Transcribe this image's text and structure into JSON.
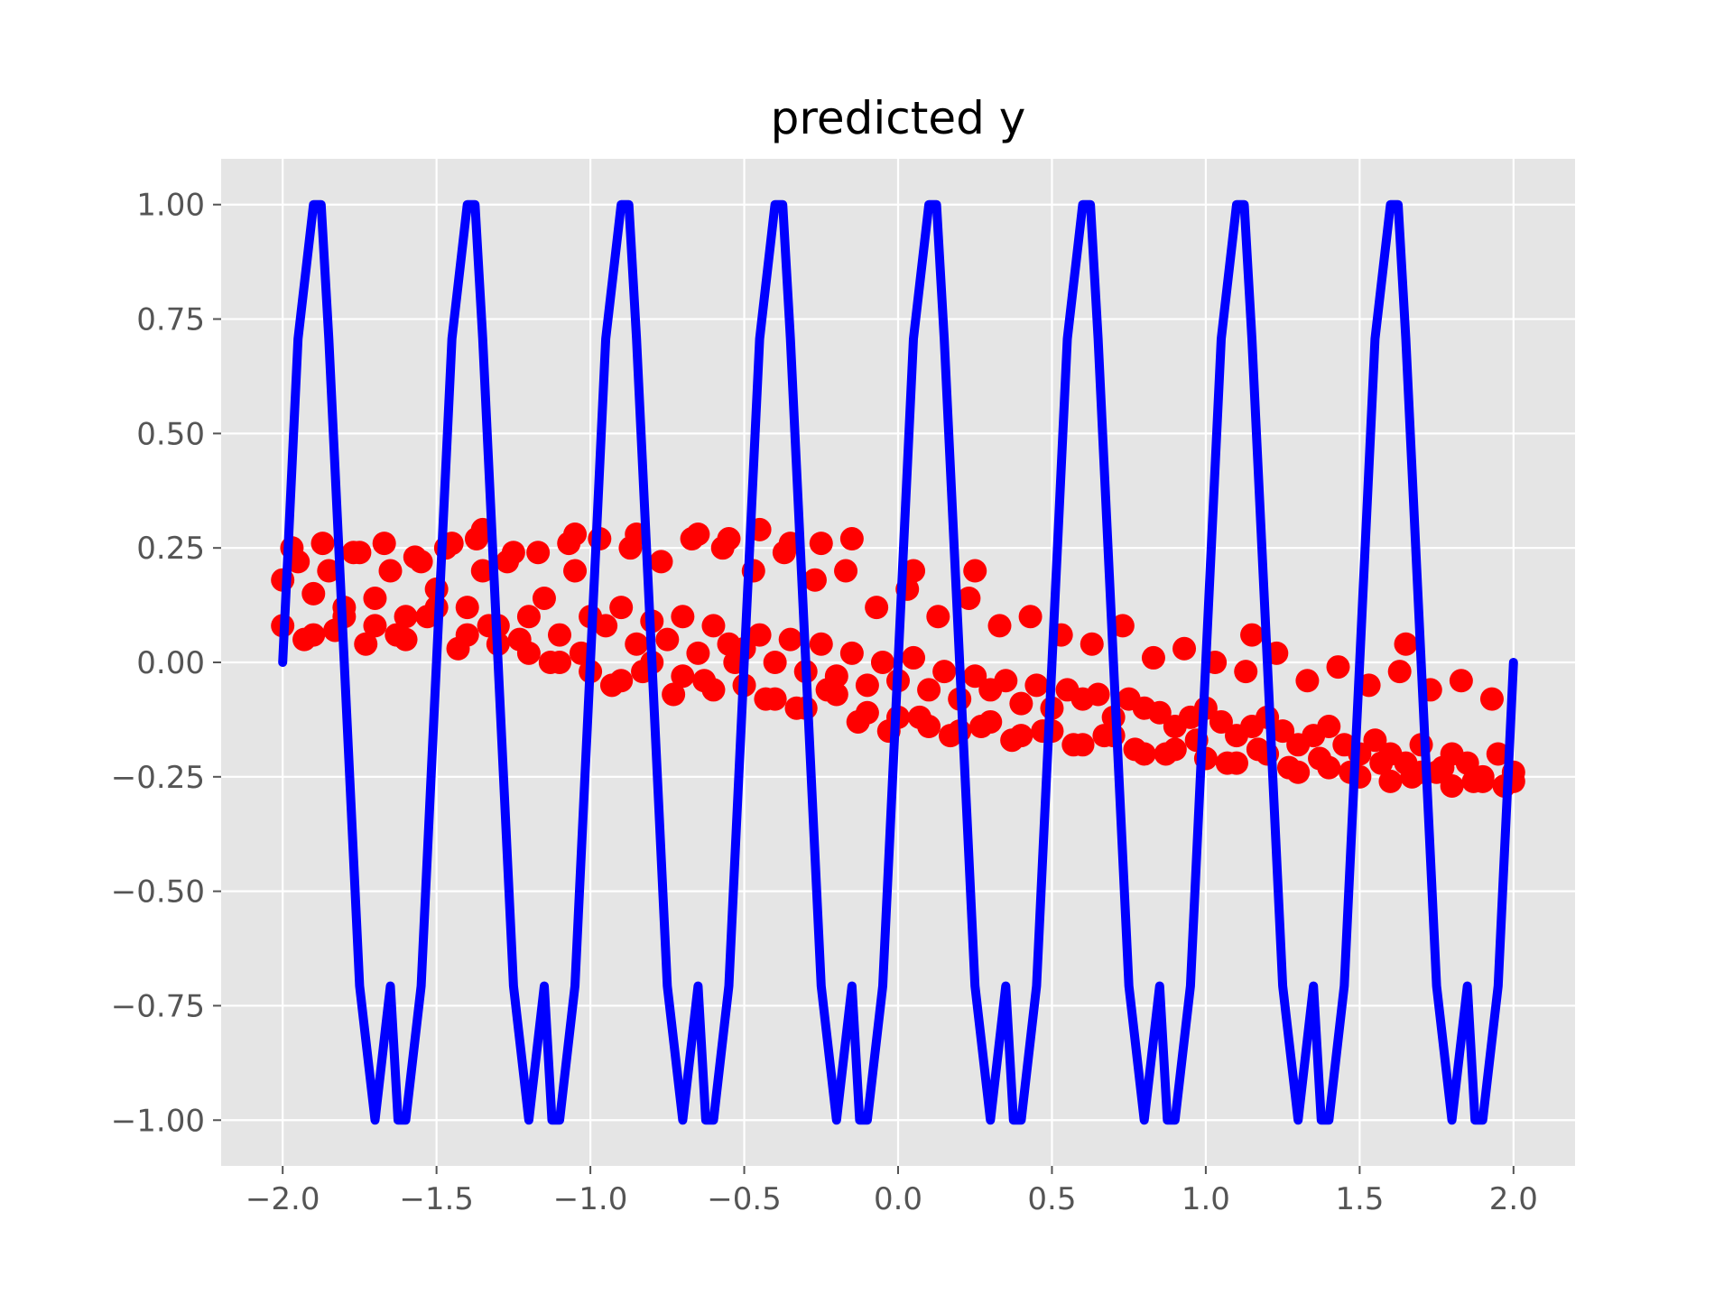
{
  "chart_data": {
    "type": "scatter",
    "title": "predicted y",
    "xlabel": "",
    "ylabel": "",
    "xlim": [
      -2.2,
      2.2
    ],
    "ylim": [
      -1.1,
      1.1
    ],
    "xticks": [
      -2.0,
      -1.5,
      -1.0,
      -0.5,
      0.0,
      0.5,
      1.0,
      1.5,
      2.0
    ],
    "xtick_labels": [
      "−2.0",
      "−1.5",
      "−1.0",
      "−0.5",
      "0.0",
      "0.5",
      "1.0",
      "1.5",
      "2.0"
    ],
    "yticks": [
      1.0,
      0.75,
      0.5,
      0.25,
      0.0,
      -0.25,
      -0.5,
      -0.75,
      -1.0
    ],
    "ytick_labels": [
      "1.00",
      "0.75",
      "0.50",
      "0.25",
      "0.00",
      "−0.25",
      "−0.50",
      "−0.75",
      "−1.00"
    ],
    "grid": true,
    "style": "ggplot",
    "colors": {
      "background": "#e5e5e5",
      "grid": "#ffffff",
      "line": "#0000ff",
      "points": "#ff0000"
    },
    "series": [
      {
        "type": "line",
        "color": "#0000ff",
        "x": [
          -2.0,
          -1.95,
          -1.9,
          -1.875,
          -1.85,
          -1.8,
          -1.75,
          -1.7,
          -1.65,
          -1.625,
          -1.6,
          -1.55,
          -1.5,
          -1.45,
          -1.4,
          -1.375,
          -1.35,
          -1.3,
          -1.25,
          -1.2,
          -1.15,
          -1.125,
          -1.1,
          -1.05,
          -1.0,
          -0.95,
          -0.9,
          -0.875,
          -0.85,
          -0.8,
          -0.75,
          -0.7,
          -0.65,
          -0.625,
          -0.6,
          -0.55,
          -0.5,
          -0.45,
          -0.4,
          -0.375,
          -0.35,
          -0.3,
          -0.25,
          -0.2,
          -0.15,
          -0.125,
          -0.1,
          -0.05,
          0.0,
          0.05,
          0.1,
          0.125,
          0.15,
          0.2,
          0.25,
          0.3,
          0.35,
          0.375,
          0.4,
          0.45,
          0.5,
          0.55,
          0.6,
          0.625,
          0.65,
          0.7,
          0.75,
          0.8,
          0.85,
          0.875,
          0.9,
          0.95,
          1.0,
          1.05,
          1.1,
          1.125,
          1.15,
          1.2,
          1.25,
          1.3,
          1.35,
          1.375,
          1.4,
          1.45,
          1.5,
          1.55,
          1.6,
          1.625,
          1.65,
          1.7,
          1.75,
          1.8,
          1.85,
          1.875,
          1.9,
          1.95,
          2.0
        ],
        "y": [
          0.0,
          0.707,
          1.0,
          1.0,
          0.707,
          0.0,
          -0.707,
          -1.0,
          -0.707,
          -1.0,
          -1.0,
          -0.707,
          0.0,
          0.707,
          1.0,
          1.0,
          0.707,
          0.0,
          -0.707,
          -1.0,
          -0.707,
          -1.0,
          -1.0,
          -0.707,
          0.0,
          0.707,
          1.0,
          1.0,
          0.707,
          0.0,
          -0.707,
          -1.0,
          -0.707,
          -1.0,
          -1.0,
          -0.707,
          0.0,
          0.707,
          1.0,
          1.0,
          0.707,
          0.0,
          -0.707,
          -1.0,
          -0.707,
          -1.0,
          -1.0,
          -0.707,
          0.0,
          0.707,
          1.0,
          1.0,
          0.707,
          0.0,
          -0.707,
          -1.0,
          -0.707,
          -1.0,
          -1.0,
          -0.707,
          0.0,
          0.707,
          1.0,
          1.0,
          0.707,
          0.0,
          -0.707,
          -1.0,
          -0.707,
          -1.0,
          -1.0,
          -0.707,
          0.0,
          0.707,
          1.0,
          1.0,
          0.707,
          0.0,
          -0.707,
          -1.0,
          -0.707,
          -1.0,
          -1.0,
          -0.707,
          0.0,
          0.707,
          1.0,
          1.0,
          0.707,
          0.0,
          -0.707,
          -1.0,
          -0.707,
          -1.0,
          -1.0,
          -0.707,
          0.0
        ]
      },
      {
        "type": "scatter",
        "color": "#ff0000",
        "x": [
          -2.0,
          -1.95,
          -1.9,
          -1.85,
          -1.8,
          -1.75,
          -1.7,
          -1.65,
          -1.6,
          -1.55,
          -1.5,
          -1.45,
          -1.4,
          -1.35,
          -1.3,
          -1.25,
          -1.2,
          -1.15,
          -1.1,
          -1.05,
          -1.0,
          -0.95,
          -0.9,
          -0.85,
          -0.8,
          -0.75,
          -0.7,
          -0.65,
          -0.6,
          -0.55,
          -0.5,
          -0.45,
          -0.4,
          -0.35,
          -0.3,
          -0.25,
          -0.2,
          -0.15,
          -0.1,
          -0.05,
          0.0,
          0.05,
          0.1,
          0.15,
          0.2,
          0.25,
          0.3,
          0.35,
          0.4,
          0.45,
          0.5,
          0.55,
          0.6,
          0.65,
          0.7,
          0.75,
          0.8,
          0.85,
          0.9,
          0.95,
          1.0,
          1.05,
          1.1,
          1.15,
          1.2,
          1.25,
          1.3,
          1.35,
          1.4,
          1.45,
          1.5,
          1.55,
          1.6,
          1.65,
          1.7,
          1.75,
          1.8,
          1.85,
          1.9,
          1.95,
          2.0,
          -2.0,
          -1.9,
          -1.8,
          -1.7,
          -1.6,
          -1.5,
          -1.4,
          -1.3,
          -1.2,
          -1.1,
          -1.0,
          -0.9,
          -0.8,
          -0.7,
          -0.6,
          -0.5,
          -0.4,
          -0.3,
          -0.2,
          -0.1,
          0.0,
          0.1,
          0.2,
          0.3,
          0.4,
          0.5,
          0.6,
          0.7,
          0.8,
          0.9,
          1.0,
          1.1,
          1.2,
          1.3,
          1.4,
          1.5,
          1.6,
          1.7,
          1.8,
          1.9,
          2.0,
          -1.97,
          -1.87,
          -1.77,
          -1.67,
          -1.57,
          -1.47,
          -1.37,
          -1.27,
          -1.17,
          -1.07,
          -0.97,
          -0.87,
          -0.77,
          -0.67,
          -0.57,
          -0.47,
          -0.37,
          -0.27,
          -0.17,
          -0.07,
          0.03,
          0.13,
          0.23,
          0.33,
          0.43,
          0.53,
          0.63,
          0.73,
          0.83,
          0.93,
          1.03,
          1.13,
          1.23,
          1.33,
          1.43,
          1.53,
          1.63,
          1.73,
          1.83,
          1.93,
          -1.93,
          -1.83,
          -1.73,
          -1.63,
          -1.53,
          -1.43,
          -1.33,
          -1.23,
          -1.13,
          -1.03,
          -0.93,
          -0.83,
          -0.73,
          -0.63,
          -0.53,
          -0.43,
          -0.33,
          -0.23,
          -0.13,
          -0.03,
          0.07,
          0.17,
          0.27,
          0.37,
          0.47,
          0.57,
          0.67,
          0.77,
          0.87,
          0.97,
          1.07,
          1.17,
          1.27,
          1.37,
          1.47,
          1.57,
          1.67,
          1.77,
          1.87,
          1.97,
          -1.05,
          -0.85,
          -0.65,
          -0.45,
          -0.25,
          -0.15,
          0.05,
          0.25,
          -1.35,
          -0.55,
          -0.35,
          1.15,
          1.65
        ],
        "y": [
          0.18,
          0.22,
          0.15,
          0.2,
          0.12,
          0.24,
          0.14,
          0.2,
          0.1,
          0.22,
          0.16,
          0.26,
          0.12,
          0.2,
          0.08,
          0.24,
          0.1,
          0.14,
          0.06,
          0.2,
          0.1,
          0.08,
          0.12,
          0.04,
          0.09,
          0.05,
          0.1,
          0.02,
          0.08,
          0.04,
          0.03,
          0.06,
          0.0,
          0.05,
          -0.02,
          0.04,
          -0.03,
          0.02,
          -0.05,
          0.0,
          -0.04,
          0.01,
          -0.06,
          -0.02,
          -0.08,
          -0.03,
          -0.06,
          -0.04,
          -0.09,
          -0.05,
          -0.1,
          -0.06,
          -0.08,
          -0.07,
          -0.12,
          -0.08,
          -0.1,
          -0.11,
          -0.14,
          -0.12,
          -0.1,
          -0.13,
          -0.16,
          -0.14,
          -0.12,
          -0.15,
          -0.18,
          -0.16,
          -0.14,
          -0.18,
          -0.2,
          -0.17,
          -0.2,
          -0.22,
          -0.18,
          -0.24,
          -0.2,
          -0.22,
          -0.25,
          -0.2,
          -0.24,
          0.08,
          0.06,
          0.1,
          0.08,
          0.05,
          0.12,
          0.06,
          0.04,
          0.02,
          0.0,
          -0.02,
          -0.04,
          0.0,
          -0.03,
          -0.06,
          -0.05,
          -0.08,
          -0.1,
          -0.07,
          -0.11,
          -0.12,
          -0.14,
          -0.15,
          -0.13,
          -0.16,
          -0.15,
          -0.18,
          -0.16,
          -0.2,
          -0.19,
          -0.21,
          -0.22,
          -0.2,
          -0.24,
          -0.23,
          -0.25,
          -0.26,
          -0.24,
          -0.27,
          -0.26,
          -0.26,
          0.25,
          0.26,
          0.24,
          0.26,
          0.23,
          0.25,
          0.27,
          0.22,
          0.24,
          0.26,
          0.27,
          0.25,
          0.22,
          0.27,
          0.25,
          0.2,
          0.24,
          0.18,
          0.2,
          0.12,
          0.16,
          0.1,
          0.14,
          0.08,
          0.1,
          0.06,
          0.04,
          0.08,
          0.01,
          0.03,
          0.0,
          -0.02,
          0.02,
          -0.04,
          -0.01,
          -0.05,
          -0.02,
          -0.06,
          -0.04,
          -0.08,
          0.05,
          0.07,
          0.04,
          0.06,
          0.1,
          0.03,
          0.08,
          0.05,
          0.0,
          0.02,
          -0.05,
          -0.02,
          -0.07,
          -0.04,
          0.0,
          -0.08,
          -0.1,
          -0.06,
          -0.13,
          -0.15,
          -0.12,
          -0.16,
          -0.14,
          -0.17,
          -0.15,
          -0.18,
          -0.16,
          -0.19,
          -0.2,
          -0.17,
          -0.22,
          -0.19,
          -0.23,
          -0.21,
          -0.24,
          -0.22,
          -0.25,
          -0.23,
          -0.26,
          -0.27,
          0.28,
          0.28,
          0.28,
          0.29,
          0.26,
          0.27,
          0.2,
          0.2,
          0.29,
          0.27,
          0.26,
          0.06,
          0.04
        ]
      }
    ]
  }
}
